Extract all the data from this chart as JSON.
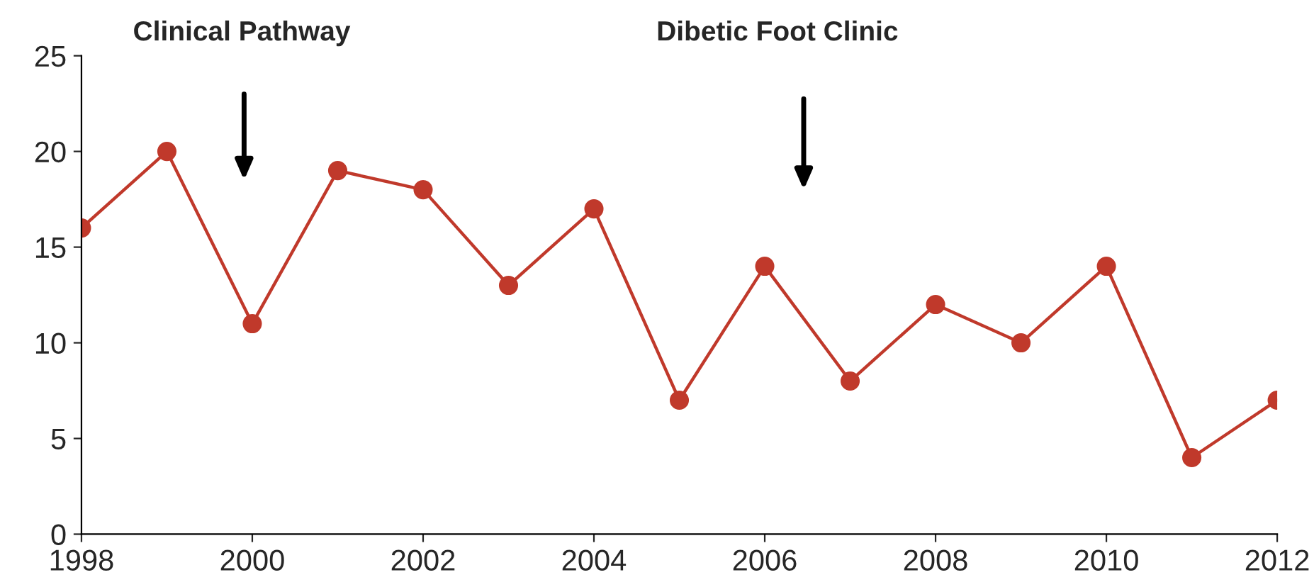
{
  "chart_data": {
    "type": "line",
    "x": [
      1998,
      1999,
      2000,
      2001,
      2002,
      2003,
      2004,
      2005,
      2006,
      2007,
      2008,
      2009,
      2010,
      2011,
      2012
    ],
    "series": [
      {
        "color": "#c0392b",
        "values": [
          16,
          20,
          11,
          19,
          18,
          13,
          17,
          7,
          14,
          8,
          12,
          10,
          14,
          4,
          7
        ]
      }
    ],
    "xlim": [
      1998,
      2012
    ],
    "xticks": [
      1998,
      2000,
      2002,
      2004,
      2006,
      2008,
      2010,
      2012
    ],
    "ylim": [
      0,
      25
    ],
    "yticks": [
      0,
      5,
      10,
      15,
      20,
      25
    ],
    "marker": "circle",
    "line_style": "solid",
    "grid": false,
    "legend": false,
    "annotations": [
      "Clinical Pathway",
      "Dibetic Foot Clinic"
    ]
  }
}
